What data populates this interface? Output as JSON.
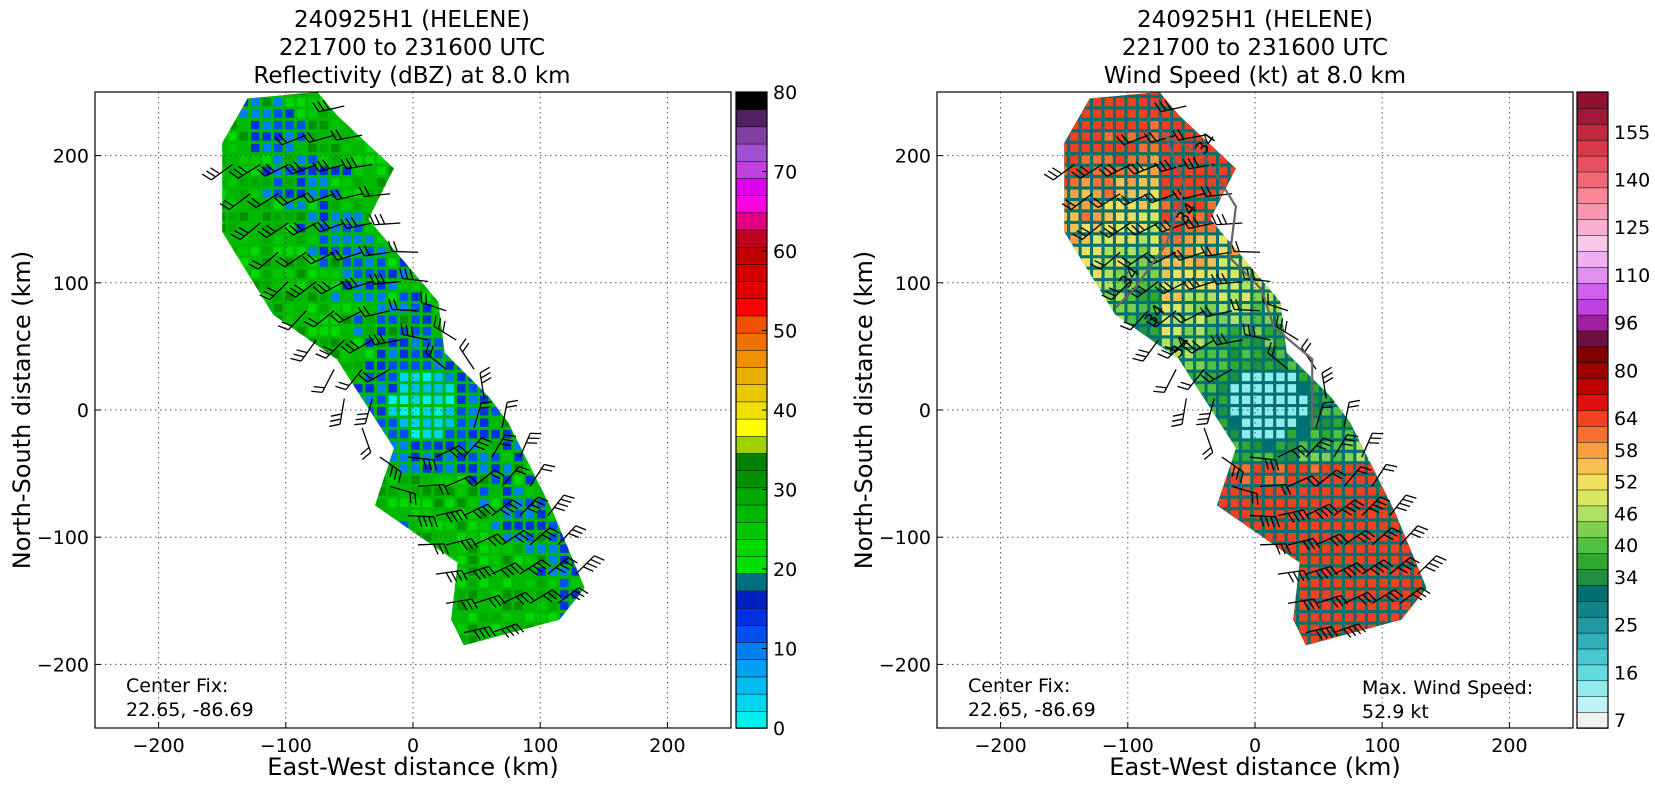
{
  "chart_data": [
    {
      "type": "heatmap",
      "title": [
        "240925H1 (HELENE)",
        "221700 to 231600 UTC",
        "Reflectivity (dBZ) at 8.0 km"
      ],
      "xlabel": "East-West distance (km)",
      "ylabel": "North-South distance (km)",
      "xlim": [
        -250,
        250
      ],
      "ylim": [
        -250,
        250
      ],
      "xticks": [
        -200,
        -100,
        0,
        100,
        200
      ],
      "yticks": [
        -200,
        -100,
        0,
        100,
        200
      ],
      "grid": true,
      "colorbar": {
        "ticks": [
          0,
          10,
          20,
          30,
          40,
          50,
          60,
          70,
          80
        ],
        "range": [
          0,
          80
        ],
        "colors": [
          "#00eeee",
          "#00d4ef",
          "#00bbee",
          "#00a0f0",
          "#0080f0",
          "#0050f0",
          "#0030e0",
          "#0020c0",
          "#007080",
          "#00e000",
          "#00d800",
          "#00c800",
          "#00b800",
          "#00a800",
          "#009000",
          "#008000",
          "#a0d000",
          "#ffff00",
          "#f0e000",
          "#e8c800",
          "#e8b000",
          "#f09000",
          "#f07000",
          "#f05000",
          "#ff0000",
          "#e00000",
          "#d00000",
          "#c00000",
          "#c00020",
          "#e00080",
          "#ff00e0",
          "#e000f0",
          "#c040e0",
          "#a050d0",
          "#8040a0",
          "#502060",
          "#000000"
        ]
      },
      "annotations": [
        "Center Fix:",
        "22.65, -86.69"
      ]
    },
    {
      "type": "heatmap",
      "title": [
        "240925H1 (HELENE)",
        "221700 to 231600 UTC",
        "Wind Speed (kt) at 8.0 km"
      ],
      "xlabel": "East-West distance (km)",
      "ylabel": "North-South distance (km)",
      "xlim": [
        -250,
        250
      ],
      "ylim": [
        -250,
        250
      ],
      "xticks": [
        -200,
        -100,
        0,
        100,
        200
      ],
      "yticks": [
        -200,
        -100,
        0,
        100,
        200
      ],
      "grid": true,
      "contour_label": "34",
      "colorbar": {
        "ticks": [
          7,
          16,
          25,
          34,
          40,
          46,
          52,
          58,
          64,
          80,
          96,
          110,
          125,
          140,
          155
        ],
        "colors": [
          "#f0f0f0",
          "#c0f4f4",
          "#90ecec",
          "#60dce0",
          "#48c8d0",
          "#30b0b8",
          "#209aa0",
          "#108488",
          "#007070",
          "#209040",
          "#30a830",
          "#50c040",
          "#80d050",
          "#b0e060",
          "#d8e860",
          "#f0e060",
          "#f8c050",
          "#f8a040",
          "#f87030",
          "#f04020",
          "#e01010",
          "#c00000",
          "#a00000",
          "#800000",
          "#701040",
          "#a020a0",
          "#c040e0",
          "#d060f0",
          "#e090f0",
          "#f0b0f0",
          "#f8c8e8",
          "#f8b0d0",
          "#f898b0",
          "#f88898",
          "#f06878",
          "#e85060",
          "#d83848",
          "#c02840",
          "#a01838",
          "#901030"
        ]
      },
      "annotations": [
        "Center Fix:",
        "22.65, -86.69",
        "Max. Wind Speed:",
        "52.9 kt"
      ]
    }
  ]
}
